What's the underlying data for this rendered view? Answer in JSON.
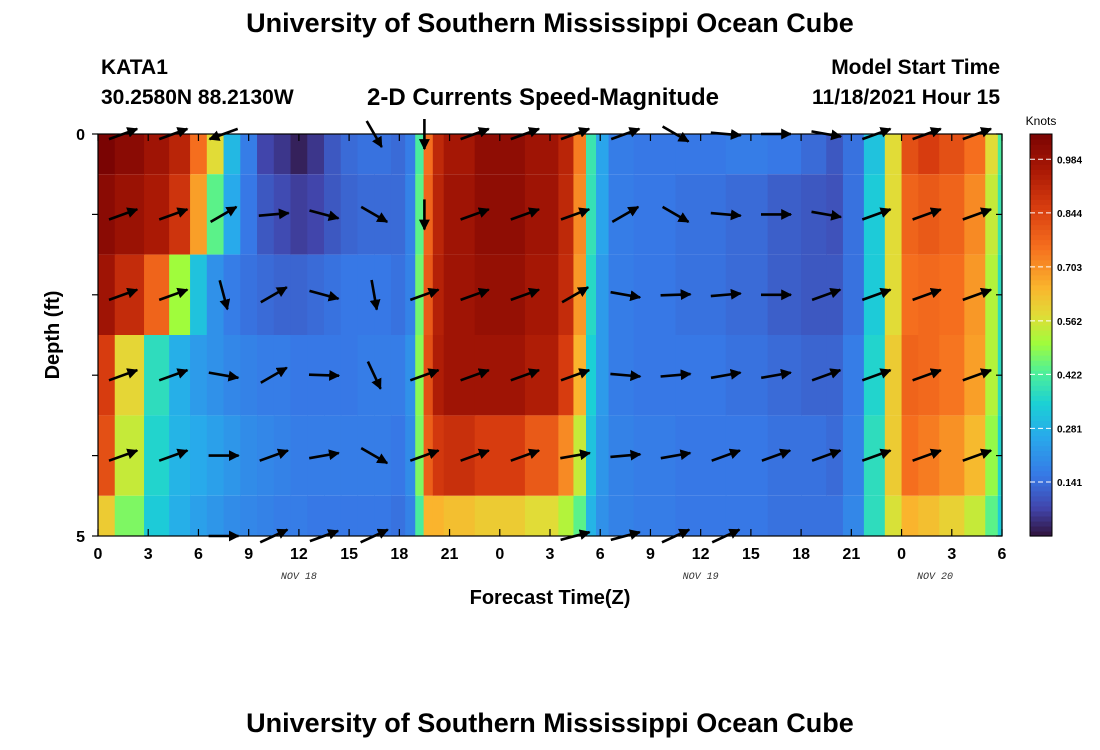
{
  "header": {
    "title": "University of Southern Mississippi Ocean Cube",
    "station": "KATA1",
    "coords": "30.2580N  88.2130W",
    "subtitle": "2-D Currents Speed-Magnitude",
    "model_start_label": "Model Start Time",
    "model_start_value": "11/18/2021 Hour 15"
  },
  "footer": {
    "title": "University of Southern Mississippi Ocean Cube"
  },
  "chart_data": {
    "type": "heatmap",
    "title": "2-D Currents Speed-Magnitude",
    "xlabel": "Forecast Time(Z)",
    "ylabel": "Depth (ft)",
    "x_tick_labels": [
      "0",
      "3",
      "6",
      "9",
      "12",
      "15",
      "18",
      "21",
      "0",
      "3",
      "6",
      "9",
      "12",
      "15",
      "18",
      "21",
      "0",
      "3",
      "6"
    ],
    "date_labels": [
      {
        "text": "NOV 18",
        "at_hour": 12
      },
      {
        "text": "NOV 19",
        "at_hour": 36
      },
      {
        "text": "NOV 20",
        "at_hour": 50
      }
    ],
    "x_range_hours": [
      0,
      54
    ],
    "y_tick_labels": [
      "0",
      "",
      "",
      "",
      "",
      "5"
    ],
    "ylim": [
      0,
      5
    ],
    "colorbar": {
      "unit": "Knots",
      "ticks": [
        0.984,
        0.844,
        0.703,
        0.562,
        0.422,
        0.281,
        0.141
      ],
      "range": [
        0.0,
        1.05
      ]
    },
    "depth_rows": [
      0,
      1,
      2,
      3,
      4,
      5
    ],
    "speed_profile": {
      "hours": [
        0,
        2,
        3.5,
        5,
        6,
        7,
        8,
        9,
        10,
        11,
        12,
        13,
        14,
        15,
        16,
        17,
        18,
        18.7,
        19.2,
        19.7,
        20.3,
        21,
        24,
        27,
        28,
        28.8,
        29.5,
        30,
        31,
        33,
        36,
        39,
        41,
        43,
        44,
        45,
        46.5,
        47.5,
        48.5,
        49.5,
        51,
        52.5,
        53.5,
        54
      ],
      "row_speeds": [
        [
          1.0,
          0.97,
          0.93,
          0.88,
          0.72,
          0.55,
          0.28,
          0.16,
          0.07,
          0.05,
          0.02,
          0.05,
          0.1,
          0.13,
          0.14,
          0.14,
          0.13,
          0.16,
          0.4,
          0.72,
          0.87,
          0.92,
          0.96,
          0.93,
          0.88,
          0.7,
          0.38,
          0.24,
          0.16,
          0.15,
          0.15,
          0.16,
          0.15,
          0.13,
          0.1,
          0.14,
          0.3,
          0.55,
          0.78,
          0.82,
          0.78,
          0.72,
          0.55,
          0.4
        ],
        [
          0.97,
          0.94,
          0.91,
          0.84,
          0.65,
          0.42,
          0.25,
          0.15,
          0.1,
          0.08,
          0.06,
          0.07,
          0.1,
          0.12,
          0.13,
          0.13,
          0.13,
          0.17,
          0.42,
          0.74,
          0.88,
          0.93,
          0.96,
          0.93,
          0.87,
          0.68,
          0.37,
          0.24,
          0.16,
          0.15,
          0.14,
          0.13,
          0.11,
          0.1,
          0.09,
          0.14,
          0.32,
          0.55,
          0.74,
          0.76,
          0.74,
          0.68,
          0.52,
          0.38
        ],
        [
          0.93,
          0.86,
          0.74,
          0.48,
          0.3,
          0.2,
          0.16,
          0.14,
          0.13,
          0.12,
          0.12,
          0.13,
          0.14,
          0.15,
          0.15,
          0.15,
          0.14,
          0.17,
          0.44,
          0.76,
          0.89,
          0.93,
          0.95,
          0.92,
          0.86,
          0.66,
          0.35,
          0.22,
          0.16,
          0.15,
          0.14,
          0.13,
          0.11,
          0.1,
          0.1,
          0.14,
          0.32,
          0.55,
          0.72,
          0.73,
          0.72,
          0.66,
          0.5,
          0.36
        ],
        [
          0.82,
          0.56,
          0.36,
          0.26,
          0.22,
          0.2,
          0.18,
          0.17,
          0.16,
          0.16,
          0.15,
          0.15,
          0.15,
          0.15,
          0.16,
          0.16,
          0.16,
          0.2,
          0.46,
          0.78,
          0.9,
          0.93,
          0.93,
          0.9,
          0.82,
          0.62,
          0.33,
          0.22,
          0.16,
          0.15,
          0.15,
          0.14,
          0.13,
          0.12,
          0.12,
          0.16,
          0.34,
          0.58,
          0.74,
          0.73,
          0.71,
          0.65,
          0.5,
          0.36
        ],
        [
          0.78,
          0.52,
          0.34,
          0.27,
          0.25,
          0.23,
          0.21,
          0.19,
          0.18,
          0.17,
          0.16,
          0.16,
          0.16,
          0.16,
          0.16,
          0.16,
          0.15,
          0.19,
          0.45,
          0.75,
          0.83,
          0.85,
          0.82,
          0.76,
          0.68,
          0.52,
          0.3,
          0.21,
          0.17,
          0.16,
          0.15,
          0.15,
          0.14,
          0.14,
          0.13,
          0.17,
          0.36,
          0.58,
          0.72,
          0.7,
          0.67,
          0.61,
          0.47,
          0.34
        ],
        [
          0.58,
          0.45,
          0.32,
          0.26,
          0.23,
          0.21,
          0.19,
          0.18,
          0.17,
          0.16,
          0.16,
          0.15,
          0.15,
          0.15,
          0.15,
          0.15,
          0.14,
          0.17,
          0.4,
          0.62,
          0.62,
          0.6,
          0.58,
          0.55,
          0.5,
          0.42,
          0.27,
          0.2,
          0.17,
          0.16,
          0.15,
          0.15,
          0.14,
          0.14,
          0.14,
          0.18,
          0.36,
          0.54,
          0.62,
          0.6,
          0.57,
          0.52,
          0.42,
          0.32
        ]
      ]
    },
    "arrow_times_hours": [
      1.5,
      4.5,
      7.5,
      10.5,
      13.5,
      16.5,
      19.5,
      22.5,
      25.5,
      28.5,
      31.5,
      34.5,
      37.5,
      40.5,
      43.5,
      46.5,
      49.5,
      52.5
    ],
    "arrow_bearings_deg": [
      [
        70,
        70,
        250,
        null,
        null,
        150,
        180,
        70,
        70,
        70,
        70,
        120,
        95,
        90,
        100,
        70,
        70,
        70
      ],
      [
        70,
        70,
        60,
        85,
        105,
        120,
        180,
        70,
        70,
        70,
        60,
        120,
        95,
        90,
        100,
        70,
        70,
        70
      ],
      [
        70,
        70,
        165,
        60,
        105,
        170,
        70,
        70,
        70,
        60,
        100,
        88,
        85,
        90,
        70,
        70,
        70,
        70
      ],
      [
        70,
        70,
        100,
        60,
        92,
        155,
        70,
        70,
        70,
        70,
        95,
        85,
        80,
        80,
        70,
        70,
        70,
        70
      ],
      [
        70,
        70,
        90,
        70,
        80,
        120,
        70,
        70,
        70,
        80,
        85,
        80,
        70,
        70,
        70,
        70,
        70,
        70
      ],
      [
        null,
        null,
        90,
        65,
        70,
        65,
        null,
        null,
        null,
        75,
        75,
        65,
        65,
        null,
        null,
        null,
        null,
        null
      ]
    ]
  }
}
